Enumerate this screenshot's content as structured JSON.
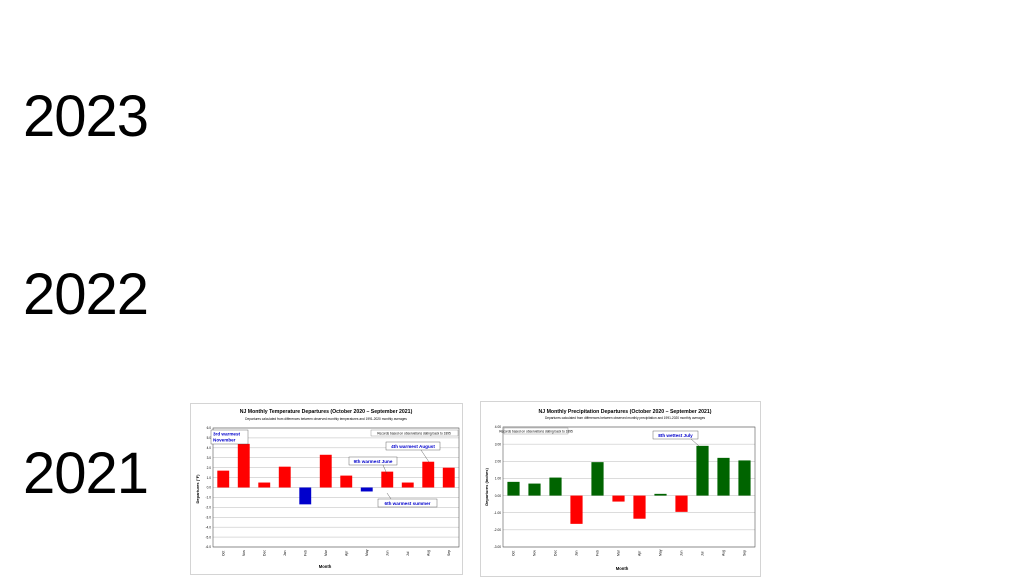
{
  "years": [
    "2023",
    "2022",
    "2021"
  ],
  "chart_data": [
    {
      "type": "bar",
      "title": "NJ Monthly  Temperature Departures (October 2020 – September 2021)",
      "subtitle": "Departures calculated from differences between observed monthly temperatures and 1991-2020 monthly averages",
      "xlabel": "Month",
      "ylabel": "Departures (°F)",
      "categories": [
        "Oct",
        "Nov",
        "Dec",
        "Jan",
        "Feb",
        "Mar",
        "Apr",
        "May",
        "Jun",
        "Jul",
        "Aug",
        "Sep"
      ],
      "values": [
        1.7,
        4.4,
        0.5,
        2.1,
        -1.7,
        3.3,
        1.2,
        -0.4,
        1.6,
        0.5,
        2.6,
        2.0
      ],
      "bar_colors": [
        "#ff0000",
        "#ff0000",
        "#ff0000",
        "#ff0000",
        "#0000cc",
        "#ff0000",
        "#ff0000",
        "#0000cc",
        "#ff0000",
        "#ff0000",
        "#ff0000",
        "#ff0000"
      ],
      "ylim": [
        -6.0,
        6.0
      ],
      "yticks": [
        "6.0",
        "5.0",
        "4.0",
        "3.0",
        "2.0",
        "1.0",
        "0.0",
        "-1.0",
        "-2.0",
        "-3.0",
        "-4.0",
        "-5.0",
        "-6.0"
      ],
      "grid": true,
      "note": "Records based on observations dating back to 1895",
      "annotations": [
        "3rd warmest November",
        "9th warmest June",
        "4th warmest August",
        "6th warmest summer"
      ]
    },
    {
      "type": "bar",
      "title": "NJ Monthly  Precipitation Departures (October 2020 – September 2021)",
      "subtitle": "Departures calculated from differences between observed monthly precipitation and 1991-2020 monthly averages",
      "xlabel": "Month",
      "ylabel": "Departures (inches)",
      "categories": [
        "Oct",
        "Nov",
        "Dec",
        "Jan",
        "Feb",
        "Mar",
        "Apr",
        "May",
        "Jun",
        "Jul",
        "Aug",
        "Sep"
      ],
      "values": [
        0.8,
        0.7,
        1.05,
        -1.65,
        1.95,
        -0.35,
        -1.35,
        0.1,
        -0.95,
        2.9,
        2.2,
        2.05
      ],
      "bar_colors": [
        "#006400",
        "#006400",
        "#006400",
        "#ff0000",
        "#006400",
        "#ff0000",
        "#ff0000",
        "#006400",
        "#ff0000",
        "#006400",
        "#006400",
        "#006400"
      ],
      "ylim": [
        -3.0,
        4.0
      ],
      "yticks": [
        "4.00",
        "3.00",
        "2.00",
        "1.00",
        "0.00",
        "-1.00",
        "-2.00",
        "-3.00"
      ],
      "grid": true,
      "note": "Records based on observations dating back to 1895",
      "annotations": [
        "8th wettest July"
      ]
    }
  ]
}
